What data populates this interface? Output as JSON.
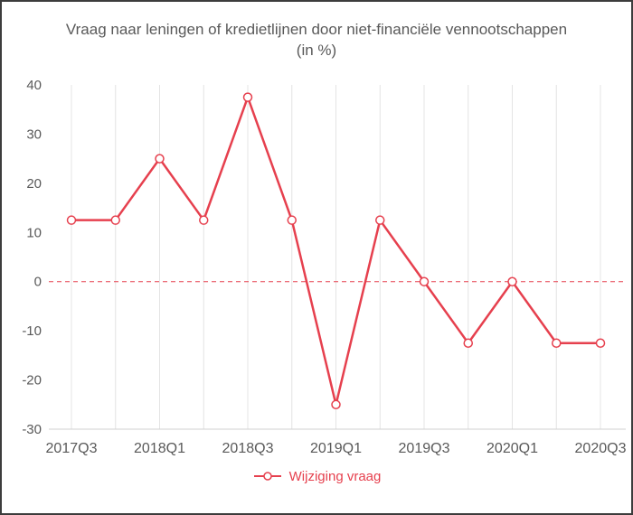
{
  "title": "Vraag naar leningen of kredietlijnen door niet-financiële vennootschappen (in %)",
  "legend": {
    "label": "Wijziging vraag"
  },
  "colors": {
    "series": "#e6404e",
    "grid": "#e4e4e4",
    "axis": "#d0d0d0",
    "text": "#595959",
    "zero_line": "#e6404e",
    "marker_fill": "#ffffff"
  },
  "chart_data": {
    "type": "line",
    "title": "Vraag naar leningen of kredietlijnen door niet-financiële vennootschappen (in %)",
    "x": [
      "2017Q3",
      "2017Q4",
      "2018Q1",
      "2018Q2",
      "2018Q3",
      "2018Q4",
      "2019Q1",
      "2019Q2",
      "2019Q3",
      "2019Q4",
      "2020Q1",
      "2020Q2",
      "2020Q3"
    ],
    "series": [
      {
        "name": "Wijziging vraag",
        "values": [
          12.5,
          12.5,
          25,
          12.5,
          37.5,
          12.5,
          -25,
          12.5,
          0,
          -12.5,
          0,
          -12.5,
          -12.5
        ]
      }
    ],
    "x_tick_labels": [
      "2017Q3",
      "2018Q1",
      "2018Q3",
      "2019Q1",
      "2019Q3",
      "2020Q1",
      "2020Q3"
    ],
    "x_tick_indices": [
      0,
      2,
      4,
      6,
      8,
      10,
      12
    ],
    "y_ticks": [
      -30,
      -20,
      -10,
      0,
      10,
      20,
      30,
      40
    ],
    "ylim": [
      -30,
      40
    ],
    "xlabel": "",
    "ylabel": "",
    "grid": "vertical",
    "zero_line": "dashed",
    "legend_position": "bottom"
  }
}
